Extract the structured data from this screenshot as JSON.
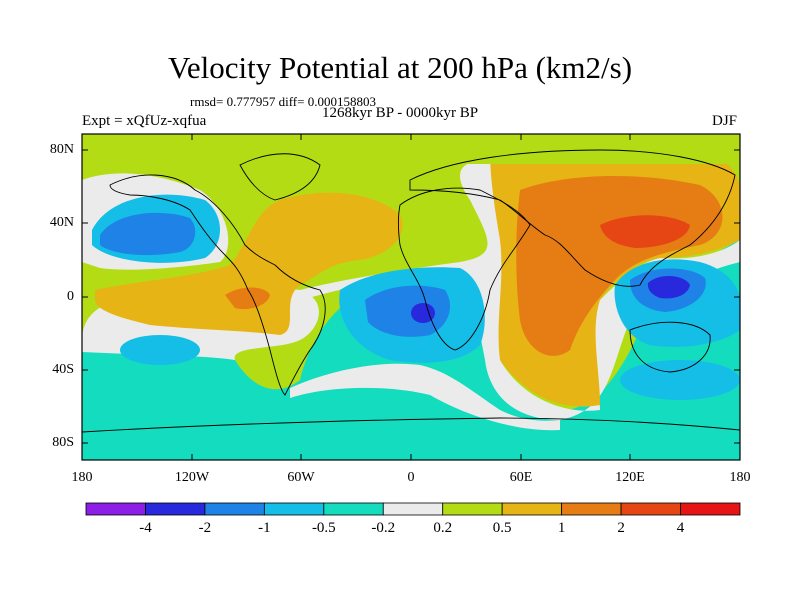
{
  "title": "Velocity Potential at 200 hPa (km2/s)",
  "stats": "rmsd= 0.777957  diff= 0.000158803",
  "subtitle": "1268kyr BP - 0000kyr BP",
  "left_label": "Expt = xQfUz-xqfua",
  "right_label": "DJF",
  "lat_ticks": [
    "80N",
    "40N",
    "0",
    "40S",
    "80S"
  ],
  "lon_ticks": [
    "180",
    "120W",
    "60W",
    "0",
    "60E",
    "120E",
    "180"
  ],
  "colorbar": {
    "labels": [
      "-4",
      "-2",
      "-1",
      "-0.5",
      "-0.2",
      "0.2",
      "0.5",
      "1",
      "2",
      "4"
    ],
    "colors": [
      "#8c1ee6",
      "#2828dc",
      "#1e82e6",
      "#14bee6",
      "#14dcbe",
      "#ebebeb",
      "#b4dc14",
      "#e6b414",
      "#e67d14",
      "#e64614",
      "#e61414"
    ]
  }
}
